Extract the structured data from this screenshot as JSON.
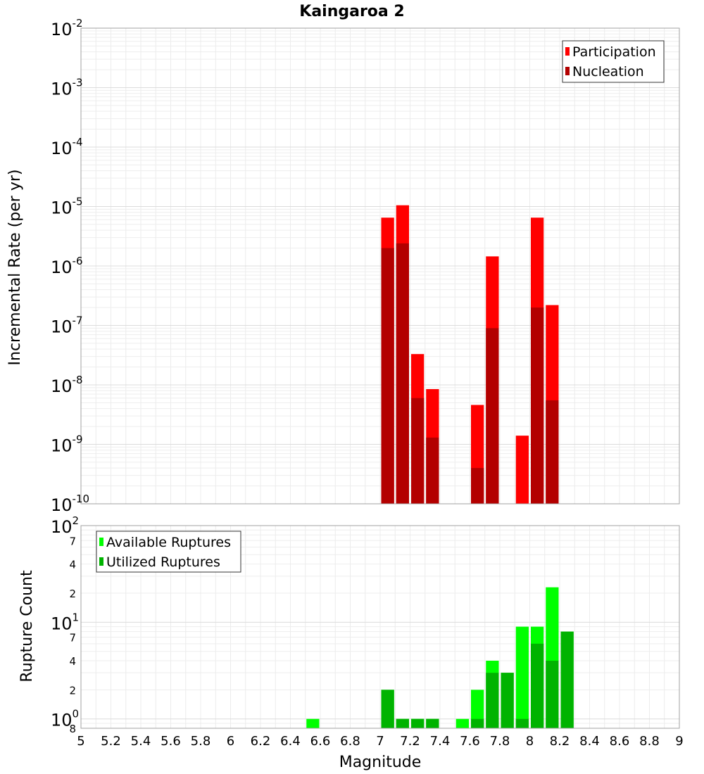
{
  "chart_data": [
    {
      "type": "bar",
      "title": "Kaingaroa 2",
      "xlabel": "",
      "ylabel": "Incremental Rate (per yr)",
      "y_scale": "log",
      "ylim": [
        1e-10,
        0.01
      ],
      "xlim": [
        5,
        9
      ],
      "bin_width": 0.1,
      "grid": true,
      "legend_position": "top-right",
      "x": [
        7.05,
        7.15,
        7.25,
        7.35,
        7.65,
        7.75,
        7.95,
        8.05,
        8.15
      ],
      "series": [
        {
          "name": "Participation",
          "color": "#ff0000",
          "values": [
            6.5e-06,
            1.05e-05,
            3.3e-08,
            8.5e-09,
            4.6e-09,
            1.45e-06,
            1.4e-09,
            6.5e-06,
            2.2e-07
          ]
        },
        {
          "name": "Nucleation",
          "color": "#b30000",
          "values": [
            2e-06,
            2.4e-06,
            6e-09,
            1.3e-09,
            4e-10,
            9e-08,
            null,
            2e-07,
            5.5e-09
          ]
        }
      ],
      "y_tick_labels": [
        "10-10",
        "10-9",
        "10-8",
        "10-7",
        "10-6",
        "10-5",
        "10-4",
        "10-3",
        "10-2"
      ]
    },
    {
      "type": "bar",
      "title": "",
      "xlabel": "Magnitude",
      "ylabel": "Rupture Count",
      "y_scale": "log",
      "ylim": [
        0.8,
        100
      ],
      "xlim": [
        5,
        9
      ],
      "bin_width": 0.1,
      "grid": true,
      "legend_position": "top-left",
      "x_tick_labels": [
        "5",
        "5.2",
        "5.4",
        "5.6",
        "5.8",
        "6",
        "6.2",
        "6.4",
        "6.6",
        "6.8",
        "7",
        "7.2",
        "7.4",
        "7.6",
        "7.8",
        "8",
        "8.2",
        "8.4",
        "8.6",
        "8.8",
        "9"
      ],
      "y_minor_tick_labels": [
        "8",
        "2",
        "4",
        "7",
        "2",
        "4",
        "7",
        "2",
        "4",
        "7"
      ],
      "x": [
        6.55,
        7.05,
        7.15,
        7.25,
        7.35,
        7.55,
        7.65,
        7.75,
        7.85,
        7.95,
        8.05,
        8.15,
        8.25
      ],
      "series": [
        {
          "name": "Available Ruptures",
          "color": "#00ff00",
          "values": [
            1,
            2,
            1,
            1,
            1,
            1,
            2,
            4,
            3,
            9,
            9,
            23,
            8
          ]
        },
        {
          "name": "Utilized Ruptures",
          "color": "#00b300",
          "values": [
            null,
            2,
            1,
            1,
            1,
            null,
            1,
            3,
            3,
            1,
            6,
            4,
            8
          ]
        }
      ],
      "y_tick_labels": [
        "10-0",
        "10-1",
        "10-2"
      ]
    }
  ]
}
